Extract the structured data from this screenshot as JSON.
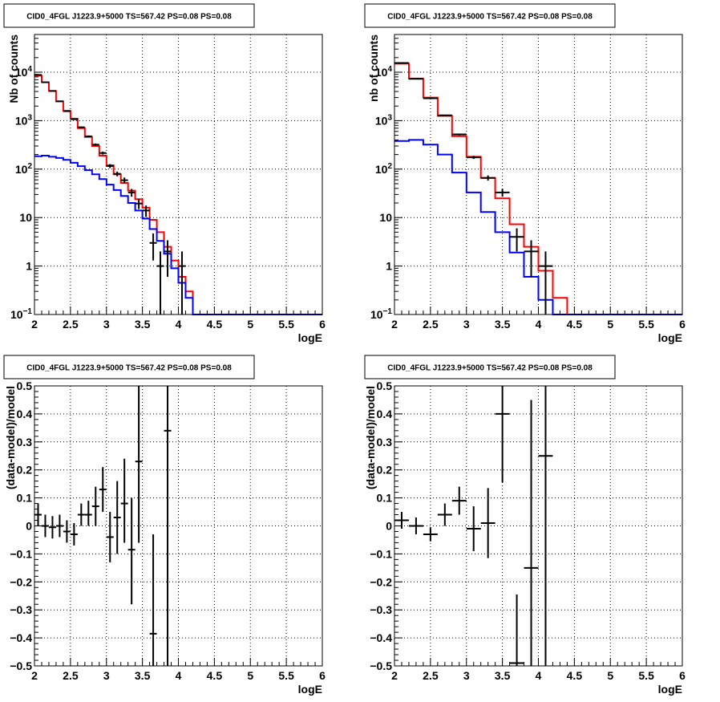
{
  "colors": {
    "data": "#000000",
    "total_model": "#ff0000",
    "component_model": "#0000ff",
    "grid": "#000000"
  },
  "chart_data": [
    {
      "type": "line",
      "title": "CID0_4FGL J1223.9+5000 TS=567.42 PS=0.08 PS=0.08",
      "xlabel": "logE",
      "ylabel": "Nb of counts",
      "xlim": [
        2,
        6
      ],
      "ylim": [
        0.1,
        60000
      ],
      "yscale": "log",
      "grid": true,
      "x_ticks": [
        2,
        2.5,
        3,
        3.5,
        4,
        4.5,
        5,
        5.5,
        6
      ],
      "x_tick_labels": [
        "2",
        "2.5",
        "3",
        "3.5",
        "4",
        "4.5",
        "5",
        "5.5",
        "6"
      ],
      "y_ticks": [
        0.1,
        1,
        10,
        100,
        1000,
        10000
      ],
      "y_tick_labels": [
        {
          "base": "10",
          "exp": "−1"
        },
        {
          "base": "1",
          "exp": ""
        },
        {
          "base": "10",
          "exp": ""
        },
        {
          "base": "10",
          "exp": "2"
        },
        {
          "base": "10",
          "exp": "3"
        },
        {
          "base": "10",
          "exp": "4"
        }
      ],
      "bin_edges": [
        2.0,
        2.1,
        2.2,
        2.3,
        2.4,
        2.5,
        2.6,
        2.7,
        2.8,
        2.9,
        3.0,
        3.1,
        3.2,
        3.3,
        3.4,
        3.5,
        3.6,
        3.7,
        3.8,
        3.9,
        4.0,
        4.1,
        4.2,
        4.3,
        4.4,
        4.5,
        4.6,
        4.7,
        4.8,
        4.9,
        5.0,
        5.1,
        5.2,
        5.3,
        5.4,
        5.5,
        5.6,
        5.7,
        5.8,
        5.9,
        6.0
      ],
      "series": [
        {
          "role": "total_model",
          "values": [
            8500,
            6200,
            4100,
            2500,
            1600,
            1100,
            700,
            460,
            300,
            190,
            120,
            78,
            52,
            36,
            24,
            16,
            9,
            5,
            2.5,
            1.3,
            0.6,
            0.3,
            0.1,
            0.1,
            0.1,
            0.1,
            0.1,
            0.1,
            0.1,
            0.1,
            0.1,
            0.1,
            0.1,
            0.1,
            0.1,
            0.1,
            0.1,
            0.1,
            0.1,
            0.1
          ]
        },
        {
          "role": "component_model",
          "values": [
            185,
            190,
            180,
            170,
            155,
            135,
            115,
            95,
            78,
            62,
            48,
            37,
            28,
            20,
            14,
            9.5,
            5.8,
            3.3,
            1.8,
            0.9,
            0.45,
            0.22,
            0.1,
            0.1,
            0.1,
            0.1,
            0.1,
            0.1,
            0.1,
            0.1,
            0.1,
            0.1,
            0.1,
            0.1,
            0.1,
            0.1,
            0.1,
            0.1,
            0.1,
            0.1
          ]
        },
        {
          "role": "data",
          "points": [
            {
              "x": 2.05,
              "y": 8800,
              "lo": 8700,
              "hi": 8900
            },
            {
              "x": 2.15,
              "y": 6200,
              "lo": 6100,
              "hi": 6300
            },
            {
              "x": 2.25,
              "y": 4100,
              "lo": 4000,
              "hi": 4200
            },
            {
              "x": 2.35,
              "y": 2510,
              "lo": 2450,
              "hi": 2560
            },
            {
              "x": 2.45,
              "y": 1570,
              "lo": 1530,
              "hi": 1610
            },
            {
              "x": 2.55,
              "y": 1070,
              "lo": 1040,
              "hi": 1100
            },
            {
              "x": 2.65,
              "y": 730,
              "lo": 700,
              "hi": 760
            },
            {
              "x": 2.75,
              "y": 475,
              "lo": 455,
              "hi": 495
            },
            {
              "x": 2.85,
              "y": 320,
              "lo": 302,
              "hi": 338
            },
            {
              "x": 2.95,
              "y": 215,
              "lo": 200,
              "hi": 230
            },
            {
              "x": 3.05,
              "y": 116,
              "lo": 105,
              "hi": 127
            },
            {
              "x": 3.15,
              "y": 80,
              "lo": 71,
              "hi": 89
            },
            {
              "x": 3.25,
              "y": 59,
              "lo": 51,
              "hi": 67
            },
            {
              "x": 3.35,
              "y": 33,
              "lo": 27,
              "hi": 39
            },
            {
              "x": 3.45,
              "y": 19.5,
              "lo": 15,
              "hi": 24
            },
            {
              "x": 3.55,
              "y": 14,
              "lo": 10.3,
              "hi": 17.7
            },
            {
              "x": 3.65,
              "y": 3,
              "lo": 1.3,
              "hi": 4.7
            },
            {
              "x": 3.75,
              "y": 1,
              "lo": 0.1,
              "hi": 2
            },
            {
              "x": 3.85,
              "y": 2,
              "lo": 0.6,
              "hi": 3.4
            },
            {
              "x": 4.05,
              "y": 1,
              "lo": 0.1,
              "hi": 2
            }
          ]
        }
      ]
    },
    {
      "type": "line",
      "title": "CID0_4FGL J1223.9+5000 TS=567.42 PS=0.08 PS=0.08",
      "xlabel": "logE",
      "ylabel": "nb of counts",
      "xlim": [
        2,
        6
      ],
      "ylim": [
        0.1,
        60000
      ],
      "yscale": "log",
      "grid": true,
      "x_ticks": [
        2,
        2.5,
        3,
        3.5,
        4,
        4.5,
        5,
        5.5,
        6
      ],
      "x_tick_labels": [
        "2",
        "2.5",
        "3",
        "3.5",
        "4",
        "4.5",
        "5",
        "5.5",
        "6"
      ],
      "y_ticks": [
        0.1,
        1,
        10,
        100,
        1000,
        10000
      ],
      "y_tick_labels": [
        {
          "base": "10",
          "exp": "−1"
        },
        {
          "base": "1",
          "exp": ""
        },
        {
          "base": "10",
          "exp": ""
        },
        {
          "base": "10",
          "exp": "2"
        },
        {
          "base": "10",
          "exp": "3"
        },
        {
          "base": "10",
          "exp": "4"
        }
      ],
      "bin_edges": [
        2.0,
        2.2,
        2.4,
        2.6,
        2.8,
        3.0,
        3.2,
        3.4,
        3.6,
        3.8,
        4.0,
        4.2,
        4.4,
        4.6,
        4.8,
        5.0,
        5.2,
        5.4,
        5.6,
        5.8,
        6.0
      ],
      "series": [
        {
          "role": "total_model",
          "values": [
            15000,
            7400,
            3000,
            1250,
            480,
            180,
            66,
            25,
            7.3,
            2.5,
            0.8,
            0.22,
            0.1,
            0.1,
            0.1,
            0.1,
            0.1,
            0.1,
            0.1,
            0.1
          ]
        },
        {
          "role": "component_model",
          "values": [
            380,
            400,
            320,
            200,
            85,
            33,
            13,
            5,
            1.9,
            0.6,
            0.2,
            0.1,
            0.1,
            0.1,
            0.1,
            0.1,
            0.1,
            0.1,
            0.1,
            0.1
          ]
        },
        {
          "role": "data",
          "points": [
            {
              "x": 2.1,
              "y": 15500,
              "lo": 15300,
              "hi": 15700
            },
            {
              "x": 2.3,
              "y": 7300,
              "lo": 7200,
              "hi": 7400
            },
            {
              "x": 2.5,
              "y": 2900,
              "lo": 2850,
              "hi": 2950
            },
            {
              "x": 2.7,
              "y": 1290,
              "lo": 1250,
              "hi": 1330
            },
            {
              "x": 2.9,
              "y": 520,
              "lo": 497,
              "hi": 543
            },
            {
              "x": 3.1,
              "y": 175,
              "lo": 162,
              "hi": 188
            },
            {
              "x": 3.3,
              "y": 66,
              "lo": 58,
              "hi": 74
            },
            {
              "x": 3.5,
              "y": 33,
              "lo": 27,
              "hi": 39
            },
            {
              "x": 3.7,
              "y": 4,
              "lo": 2,
              "hi": 6
            },
            {
              "x": 3.9,
              "y": 2,
              "lo": 0.6,
              "hi": 3.4
            },
            {
              "x": 4.1,
              "y": 1,
              "lo": 0.1,
              "hi": 2
            }
          ]
        }
      ]
    },
    {
      "type": "scatter",
      "title": "CID0_4FGL J1223.9+5000 TS=567.42 PS=0.08 PS=0.08",
      "xlabel": "logE",
      "ylabel": "(data-model)/model",
      "xlim": [
        2,
        6
      ],
      "ylim": [
        -0.5,
        0.5
      ],
      "grid": true,
      "x_ticks": [
        2,
        2.5,
        3,
        3.5,
        4,
        4.5,
        5,
        5.5,
        6
      ],
      "x_tick_labels": [
        "2",
        "2.5",
        "3",
        "3.5",
        "4",
        "4.5",
        "5",
        "5.5",
        "6"
      ],
      "y_ticks": [
        -0.5,
        -0.4,
        -0.3,
        -0.2,
        -0.1,
        0,
        0.1,
        0.2,
        0.3,
        0.4,
        0.5
      ],
      "y_tick_labels": [
        "−0.5",
        "−0.4",
        "−0.3",
        "−0.2",
        "−0.1",
        "0",
        "0.1",
        "0.2",
        "0.3",
        "0.4",
        "0.5"
      ],
      "x_half_width": 0.05,
      "series": [
        {
          "role": "data",
          "points": [
            {
              "x": 2.05,
              "y": 0.04,
              "lo": 0.0,
              "hi": 0.08
            },
            {
              "x": 2.15,
              "y": 0.0,
              "lo": -0.04,
              "hi": 0.04
            },
            {
              "x": 2.25,
              "y": -0.005,
              "lo": -0.045,
              "hi": 0.035
            },
            {
              "x": 2.35,
              "y": 0.0,
              "lo": -0.04,
              "hi": 0.04
            },
            {
              "x": 2.45,
              "y": -0.02,
              "lo": -0.06,
              "hi": 0.02
            },
            {
              "x": 2.55,
              "y": -0.03,
              "lo": -0.07,
              "hi": 0.01
            },
            {
              "x": 2.65,
              "y": 0.04,
              "lo": 0.0,
              "hi": 0.08
            },
            {
              "x": 2.75,
              "y": 0.04,
              "lo": 0.0,
              "hi": 0.09
            },
            {
              "x": 2.85,
              "y": 0.07,
              "lo": 0.0,
              "hi": 0.14
            },
            {
              "x": 2.95,
              "y": 0.13,
              "lo": 0.05,
              "hi": 0.21
            },
            {
              "x": 3.05,
              "y": -0.04,
              "lo": -0.13,
              "hi": 0.05
            },
            {
              "x": 3.15,
              "y": 0.03,
              "lo": -0.1,
              "hi": 0.16
            },
            {
              "x": 3.25,
              "y": 0.08,
              "lo": -0.06,
              "hi": 0.24
            },
            {
              "x": 3.35,
              "y": -0.085,
              "lo": -0.28,
              "hi": 0.1
            },
            {
              "x": 3.45,
              "y": 0.23,
              "lo": -0.06,
              "hi": 0.5
            },
            {
              "x": 3.65,
              "y": -0.385,
              "lo": -0.5,
              "hi": -0.03
            },
            {
              "x": 3.85,
              "y": 0.34,
              "lo": -0.5,
              "hi": 0.5
            }
          ]
        }
      ]
    },
    {
      "type": "scatter",
      "title": "CID0_4FGL J1223.9+5000 TS=567.42 PS=0.08 PS=0.08",
      "xlabel": "logE",
      "ylabel": "(data-model)/model",
      "xlim": [
        2,
        6
      ],
      "ylim": [
        -0.5,
        0.5
      ],
      "grid": true,
      "x_ticks": [
        2,
        2.5,
        3,
        3.5,
        4,
        4.5,
        5,
        5.5,
        6
      ],
      "x_tick_labels": [
        "2",
        "2.5",
        "3",
        "3.5",
        "4",
        "4.5",
        "5",
        "5.5",
        "6"
      ],
      "y_ticks": [
        -0.5,
        -0.4,
        -0.3,
        -0.2,
        -0.1,
        0,
        0.1,
        0.2,
        0.3,
        0.4,
        0.5
      ],
      "y_tick_labels": [
        "−0.5",
        "−0.4",
        "−0.3",
        "−0.2",
        "−0.1",
        "0",
        "0.1",
        "0.2",
        "0.3",
        "0.4",
        "0.5"
      ],
      "x_half_width": 0.1,
      "series": [
        {
          "role": "data",
          "points": [
            {
              "x": 2.1,
              "y": 0.02,
              "lo": -0.01,
              "hi": 0.05
            },
            {
              "x": 2.3,
              "y": 0.0,
              "lo": -0.03,
              "hi": 0.03
            },
            {
              "x": 2.5,
              "y": -0.03,
              "lo": -0.055,
              "hi": -0.005
            },
            {
              "x": 2.7,
              "y": 0.04,
              "lo": 0.0,
              "hi": 0.08
            },
            {
              "x": 2.9,
              "y": 0.09,
              "lo": 0.04,
              "hi": 0.14
            },
            {
              "x": 3.1,
              "y": -0.01,
              "lo": -0.09,
              "hi": 0.07
            },
            {
              "x": 3.3,
              "y": 0.01,
              "lo": -0.115,
              "hi": 0.135
            },
            {
              "x": 3.5,
              "y": 0.4,
              "lo": 0.155,
              "hi": 0.5
            },
            {
              "x": 3.7,
              "y": -0.49,
              "lo": -0.5,
              "hi": -0.245
            },
            {
              "x": 3.9,
              "y": -0.15,
              "lo": -0.5,
              "hi": 0.45
            },
            {
              "x": 4.1,
              "y": 0.25,
              "lo": -0.5,
              "hi": 0.5
            }
          ]
        }
      ]
    }
  ]
}
